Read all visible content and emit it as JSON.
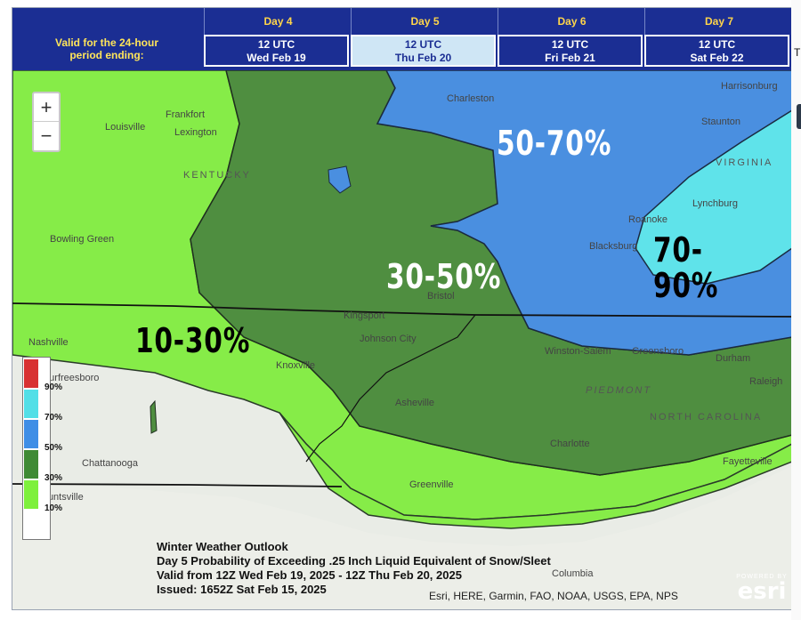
{
  "header": {
    "valid_label_line1": "Valid for the 24-hour",
    "valid_label_line2": "period ending:",
    "days": [
      {
        "day": "Day 4",
        "time": "12 UTC",
        "date": "Wed Feb 19",
        "selected": false
      },
      {
        "day": "Day 5",
        "time": "12 UTC",
        "date": "Thu Feb 20",
        "selected": true
      },
      {
        "day": "Day 6",
        "time": "12 UTC",
        "date": "Fri Feb 21",
        "selected": false
      },
      {
        "day": "Day 7",
        "time": "12 UTC",
        "date": "Sat Feb 22",
        "selected": false
      }
    ]
  },
  "zoom": {
    "in": "+",
    "out": "−"
  },
  "side_text": "T",
  "bands": [
    {
      "label": "10-30%",
      "color": "#000000"
    },
    {
      "label": "30-50%",
      "color": "#ffffff"
    },
    {
      "label": "50-70%",
      "color": "#ffffff"
    },
    {
      "label": "70-90%",
      "color": "#000000"
    }
  ],
  "legend": {
    "entries": [
      {
        "label": "90%",
        "color": "#d83232"
      },
      {
        "label": "70%",
        "color": "#52dfe7"
      },
      {
        "label": "50%",
        "color": "#3f8ee6"
      },
      {
        "label": "30%",
        "color": "#3f8a35"
      },
      {
        "label": "10%",
        "color": "#7ef03c"
      }
    ]
  },
  "caption": {
    "line1": "Winter Weather Outlook",
    "line2": "Day 5 Probability of Exceeding .25 Inch Liquid Equivalent of Snow/Sleet",
    "line3": "Valid from 12Z Wed Feb 19, 2025 - 12Z Thu Feb 20, 2025",
    "line4": "Issued: 1652Z Sat Feb 15, 2025"
  },
  "attribution": "Esri, HERE, Garmin, FAO, NOAA, USGS, EPA, NPS",
  "esri": {
    "powered": "POWERED BY",
    "logo": "esri"
  },
  "places": [
    {
      "name": "Louisville"
    },
    {
      "name": "Frankfort"
    },
    {
      "name": "Lexington"
    },
    {
      "name": "Charleston"
    },
    {
      "name": "Harrisonburg"
    },
    {
      "name": "Staunton"
    },
    {
      "name": "Lynchburg"
    },
    {
      "name": "Roanoke"
    },
    {
      "name": "Blacksburg"
    },
    {
      "name": "Bowling Green"
    },
    {
      "name": "Nashville"
    },
    {
      "name": "Murfreesboro"
    },
    {
      "name": "Kingsport"
    },
    {
      "name": "Bristol"
    },
    {
      "name": "Johnson City"
    },
    {
      "name": "Knoxville"
    },
    {
      "name": "Asheville"
    },
    {
      "name": "Winston-Salem"
    },
    {
      "name": "Greensboro"
    },
    {
      "name": "Durham"
    },
    {
      "name": "Raleigh"
    },
    {
      "name": "Charlotte"
    },
    {
      "name": "Chattanooga"
    },
    {
      "name": "Huntsville"
    },
    {
      "name": "Greenville"
    },
    {
      "name": "Fayetteville"
    },
    {
      "name": "Columbia"
    }
  ],
  "states": [
    {
      "name": "KENTUCKY"
    },
    {
      "name": "VIRGINIA"
    },
    {
      "name": "NORTH CAROLINA"
    },
    {
      "name": "PIEDMONT"
    }
  ]
}
